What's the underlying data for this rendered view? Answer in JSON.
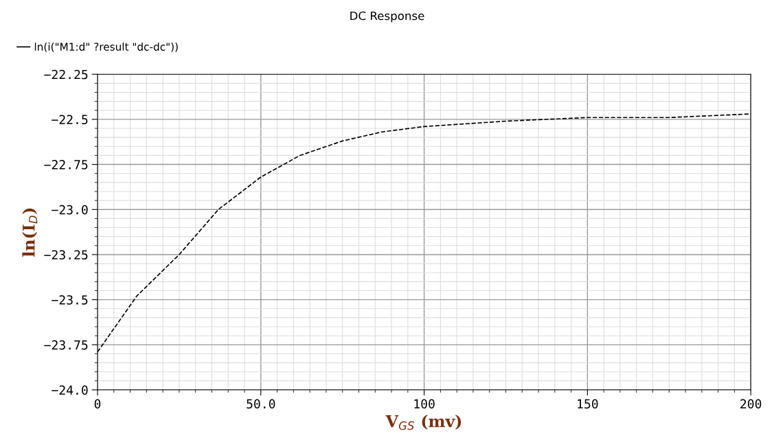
{
  "chart_data": {
    "type": "line",
    "title": "DC Response",
    "xlabel": "V$_{GS}$ (mv)",
    "ylabel": "ln(I$_{D}$)",
    "x": [
      0,
      12,
      25,
      37,
      50,
      62,
      75,
      87,
      100,
      125,
      150,
      175,
      200
    ],
    "series": [
      {
        "name": "ln(i(\"M1:d\" ?result \"dc-dc\"))",
        "color": "#000000",
        "values": [
          -23.79,
          -23.48,
          -23.25,
          -23.0,
          -22.82,
          -22.7,
          -22.62,
          -22.57,
          -22.54,
          -22.51,
          -22.49,
          -22.49,
          -22.47
        ]
      }
    ],
    "xlim": [
      0,
      200
    ],
    "xticks": [
      0,
      {
        "value": 50,
        "label": "50.0"
      },
      100,
      150,
      200
    ],
    "ylim": [
      -24.0,
      -22.25
    ],
    "yticks": [
      {
        "value": -24.0,
        "label": "−24.0"
      },
      {
        "value": -23.75,
        "label": "−23.75"
      },
      {
        "value": -23.5,
        "label": "−23.5"
      },
      {
        "value": -23.25,
        "label": "−23.25"
      },
      {
        "value": -23.0,
        "label": "−23.0"
      },
      {
        "value": -22.75,
        "label": "−22.75"
      },
      {
        "value": -22.5,
        "label": "−22.5"
      },
      {
        "value": -22.25,
        "label": "−22.25"
      }
    ],
    "grid": true,
    "legend": "top left",
    "line_style": "dashed",
    "marker": "none"
  }
}
